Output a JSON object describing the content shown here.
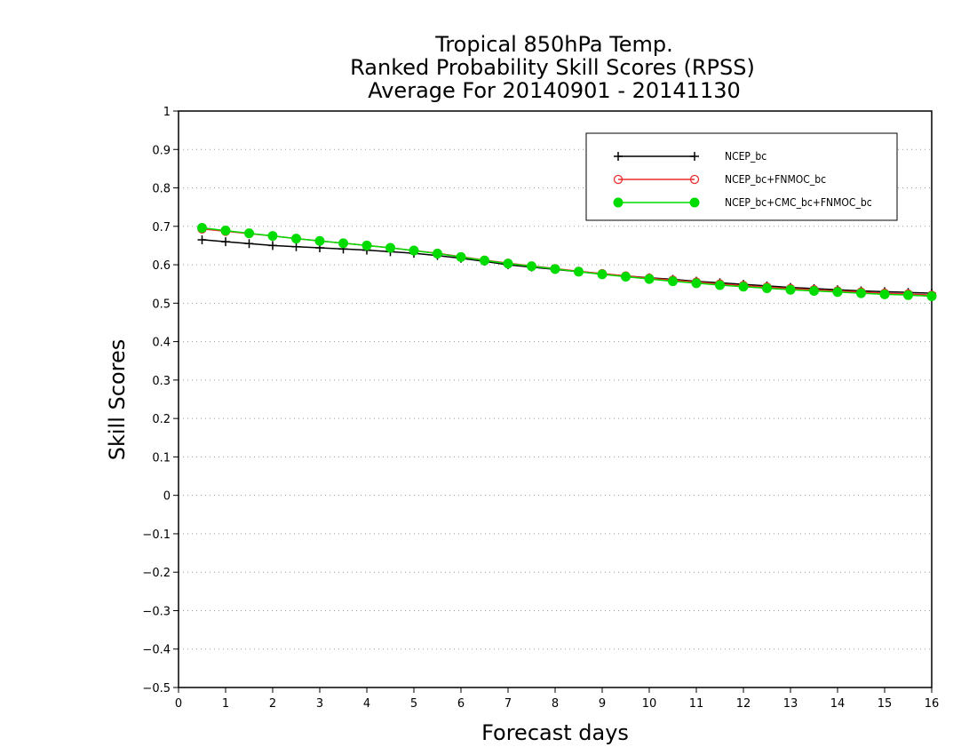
{
  "chart_data": {
    "type": "line",
    "title": [
      "Tropical 850hPa Temp.",
      "Ranked Probability Skill Scores (RPSS)",
      "Average For 20140901 - 20141130"
    ],
    "xlabel": "Forecast days",
    "ylabel": "Skill Scores",
    "xlim": [
      0,
      16
    ],
    "ylim": [
      -0.5,
      1
    ],
    "xticks": [
      "0",
      "1",
      "2",
      "3",
      "4",
      "5",
      "6",
      "7",
      "8",
      "9",
      "10",
      "11",
      "12",
      "13",
      "14",
      "15",
      "16"
    ],
    "yticks": [
      "−0.5",
      "−0.4",
      "−0.3",
      "−0.2",
      "−0.1",
      "0",
      "0.1",
      "0.2",
      "0.3",
      "0.4",
      "0.5",
      "0.6",
      "0.7",
      "0.8",
      "0.9",
      "1"
    ],
    "grid": true,
    "legend_position": "top-right",
    "x": [
      0.5,
      1,
      1.5,
      2,
      2.5,
      3,
      3.5,
      4,
      4.5,
      5,
      5.5,
      6,
      6.5,
      7,
      7.5,
      8,
      8.5,
      9,
      9.5,
      10,
      10.5,
      11,
      11.5,
      12,
      12.5,
      13,
      13.5,
      14,
      14.5,
      15,
      15.5,
      16
    ],
    "series": [
      {
        "name": "NCEP_bc",
        "color": "#000000",
        "marker": "plus",
        "values": [
          0.665,
          0.66,
          0.655,
          0.65,
          0.647,
          0.644,
          0.641,
          0.638,
          0.634,
          0.63,
          0.624,
          0.617,
          0.609,
          0.6,
          0.594,
          0.588,
          0.582,
          0.576,
          0.571,
          0.566,
          0.562,
          0.557,
          0.553,
          0.549,
          0.545,
          0.541,
          0.538,
          0.535,
          0.532,
          0.53,
          0.528,
          0.526
        ]
      },
      {
        "name": "NCEP_bc+FNMOC_bc",
        "color": "#ee2c2c",
        "marker": "open-circle",
        "values": [
          0.693,
          0.687,
          0.681,
          0.675,
          0.668,
          0.662,
          0.656,
          0.65,
          0.644,
          0.637,
          0.63,
          0.621,
          0.612,
          0.604,
          0.597,
          0.59,
          0.583,
          0.577,
          0.571,
          0.565,
          0.56,
          0.555,
          0.55,
          0.546,
          0.542,
          0.538,
          0.535,
          0.532,
          0.529,
          0.526,
          0.524,
          0.521
        ]
      },
      {
        "name": "NCEP_bc+CMC_bc+FNMOC_bc",
        "color": "#00dc00",
        "marker": "filled-circle",
        "values": [
          0.696,
          0.689,
          0.682,
          0.675,
          0.668,
          0.662,
          0.656,
          0.65,
          0.644,
          0.637,
          0.629,
          0.62,
          0.611,
          0.603,
          0.596,
          0.589,
          0.582,
          0.575,
          0.569,
          0.563,
          0.557,
          0.552,
          0.547,
          0.543,
          0.539,
          0.535,
          0.532,
          0.529,
          0.526,
          0.523,
          0.521,
          0.518
        ]
      }
    ]
  }
}
